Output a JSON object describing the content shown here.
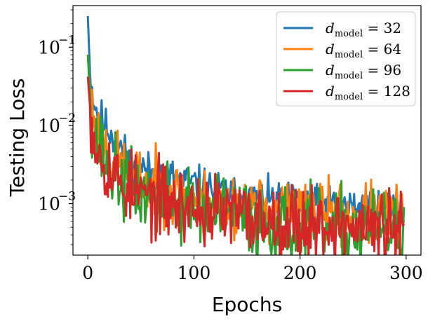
{
  "chart_data": {
    "type": "line",
    "title": "",
    "xlabel": "Epochs",
    "ylabel": "Testing Loss",
    "xscale": "linear",
    "yscale": "log",
    "xlim": [
      -14,
      314
    ],
    "ylim": [
      0.00022,
      0.34
    ],
    "xticks": [
      0,
      100,
      200,
      300
    ],
    "xtick_labels": [
      "0",
      "100",
      "200",
      "300"
    ],
    "yticks": [
      0.001,
      0.01,
      0.1
    ],
    "ytick_labels": [
      {
        "base": "10",
        "exp": "−3"
      },
      {
        "base": "10",
        "exp": "−2"
      },
      {
        "base": "10",
        "exp": "−1"
      }
    ],
    "legend_position": "top-right",
    "series": [
      {
        "name": "d_model = 32",
        "legend_var": "d",
        "legend_sub": "model",
        "legend_rest": " = 32",
        "color": "#1f77b4",
        "anchors": [
          [
            0,
            0.25
          ],
          [
            2,
            0.05
          ],
          [
            5,
            0.022
          ],
          [
            10,
            0.014
          ],
          [
            20,
            0.0085
          ],
          [
            30,
            0.0055
          ],
          [
            40,
            0.0035
          ],
          [
            60,
            0.0025
          ],
          [
            80,
            0.0022
          ],
          [
            100,
            0.0018
          ],
          [
            120,
            0.0015
          ],
          [
            150,
            0.0012
          ],
          [
            200,
            0.001
          ],
          [
            250,
            0.0009
          ],
          [
            298,
            0.00095
          ]
        ],
        "noise": 0.12,
        "seed": 11
      },
      {
        "name": "d_model = 64",
        "legend_var": "d",
        "legend_sub": "model",
        "legend_rest": " = 64",
        "color": "#ff7f0e",
        "anchors": [
          [
            0,
            0.08
          ],
          [
            2,
            0.03
          ],
          [
            5,
            0.013
          ],
          [
            10,
            0.0075
          ],
          [
            20,
            0.0045
          ],
          [
            30,
            0.003
          ],
          [
            50,
            0.0019
          ],
          [
            80,
            0.0014
          ],
          [
            100,
            0.0011
          ],
          [
            150,
            0.0009
          ],
          [
            200,
            0.00078
          ],
          [
            250,
            0.00072
          ],
          [
            298,
            0.0007
          ]
        ],
        "noise": 0.2,
        "seed": 23
      },
      {
        "name": "d_model = 96",
        "legend_var": "d",
        "legend_sub": "model",
        "legend_rest": " = 96",
        "color": "#2ca02c",
        "anchors": [
          [
            0,
            0.08
          ],
          [
            2,
            0.025
          ],
          [
            5,
            0.01
          ],
          [
            10,
            0.0055
          ],
          [
            20,
            0.003
          ],
          [
            30,
            0.002
          ],
          [
            50,
            0.0013
          ],
          [
            80,
            0.001
          ],
          [
            100,
            0.0009
          ],
          [
            150,
            0.00065
          ],
          [
            200,
            0.0005
          ],
          [
            250,
            0.00046
          ],
          [
            298,
            0.00045
          ]
        ],
        "noise": 0.24,
        "seed": 37
      },
      {
        "name": "d_model = 128",
        "legend_var": "d",
        "legend_sub": "model",
        "legend_rest": " = 128",
        "color": "#d62728",
        "anchors": [
          [
            0,
            0.042
          ],
          [
            2,
            0.018
          ],
          [
            5,
            0.009
          ],
          [
            10,
            0.005
          ],
          [
            20,
            0.0028
          ],
          [
            30,
            0.0019
          ],
          [
            50,
            0.0013
          ],
          [
            80,
            0.001
          ],
          [
            100,
            0.00088
          ],
          [
            150,
            0.00068
          ],
          [
            200,
            0.00058
          ],
          [
            250,
            0.0005
          ],
          [
            298,
            0.00045
          ]
        ],
        "noise": 0.24,
        "seed": 53
      }
    ]
  }
}
